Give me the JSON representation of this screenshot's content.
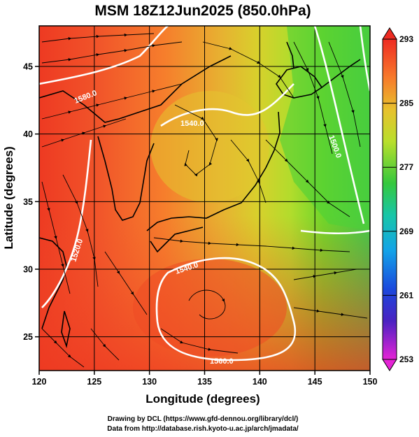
{
  "title": "MSM 18Z12Jun2025 (850.0hPa)",
  "xaxis": {
    "label": "Longitude (degrees)",
    "ticks": [
      "120",
      "125",
      "130",
      "135",
      "140",
      "145",
      "150"
    ]
  },
  "yaxis": {
    "label": "Latitude (degrees)",
    "ticks": [
      "25",
      "30",
      "35",
      "40",
      "45"
    ]
  },
  "colorbar": {
    "ticks": [
      "293",
      "285",
      "277",
      "269",
      "261",
      "253"
    ]
  },
  "contour_labels": [
    "1560.0",
    "1520.0",
    "1540.0",
    "1500.0",
    "1580.0",
    "1540.0",
    "1560.0"
  ],
  "credits": {
    "line1": "Drawing by DCL (https://www.gfd-dennou.org/library/dcl/)",
    "line2": "Data from http://database.rish.kyoto-u.ac.jp/arch/jmadata/"
  },
  "map_data": {
    "lon_range": [
      120,
      150
    ],
    "lat_range": [
      22.5,
      48
    ],
    "variable": "temperature (K) shading with streamlines and geopotential height contours",
    "colorbar_range": [
      253,
      293
    ]
  }
}
